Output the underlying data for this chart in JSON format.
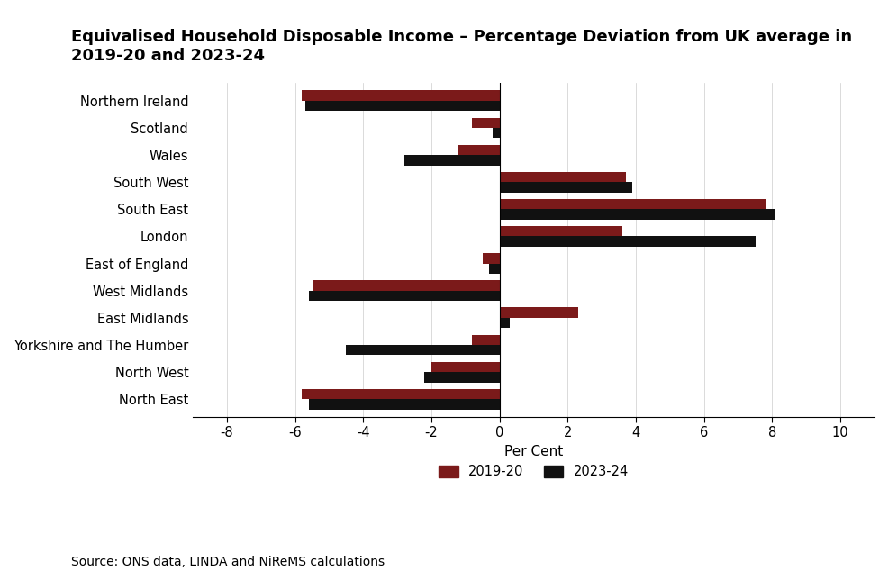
{
  "title_line1": "Equivalised Household Disposable Income – Percentage Deviation from UK average in",
  "title_line2": "2019-20 and 2023-24",
  "categories": [
    "Northern Ireland",
    "Scotland",
    "Wales",
    "South West",
    "South East",
    "London",
    "East of England",
    "West Midlands",
    "East Midlands",
    "Yorkshire and The Humber",
    "North West",
    "North East"
  ],
  "values_2019_20": [
    -5.8,
    -0.8,
    -1.2,
    3.7,
    7.8,
    3.6,
    -0.5,
    -5.5,
    2.3,
    -0.8,
    -2.0,
    -5.8
  ],
  "values_2023_24": [
    -5.7,
    -0.2,
    -2.8,
    3.9,
    8.1,
    7.5,
    -0.3,
    -5.6,
    0.3,
    -4.5,
    -2.2,
    -5.6
  ],
  "color_2019_20": "#7b1a1a",
  "color_2023_24": "#111111",
  "xlabel": "Per Cent",
  "xlim": [
    -9,
    11
  ],
  "xticks": [
    -8,
    -6,
    -4,
    -2,
    0,
    2,
    4,
    6,
    8,
    10
  ],
  "legend_label_2019_20": "2019-20",
  "legend_label_2023_24": "2023-24",
  "source_text": "Source: ONS data, LINDA and NiReMS calculations",
  "title_fontsize": 13,
  "axis_fontsize": 11,
  "tick_fontsize": 10.5,
  "source_fontsize": 10,
  "bar_height": 0.38,
  "background_color": "#ffffff"
}
